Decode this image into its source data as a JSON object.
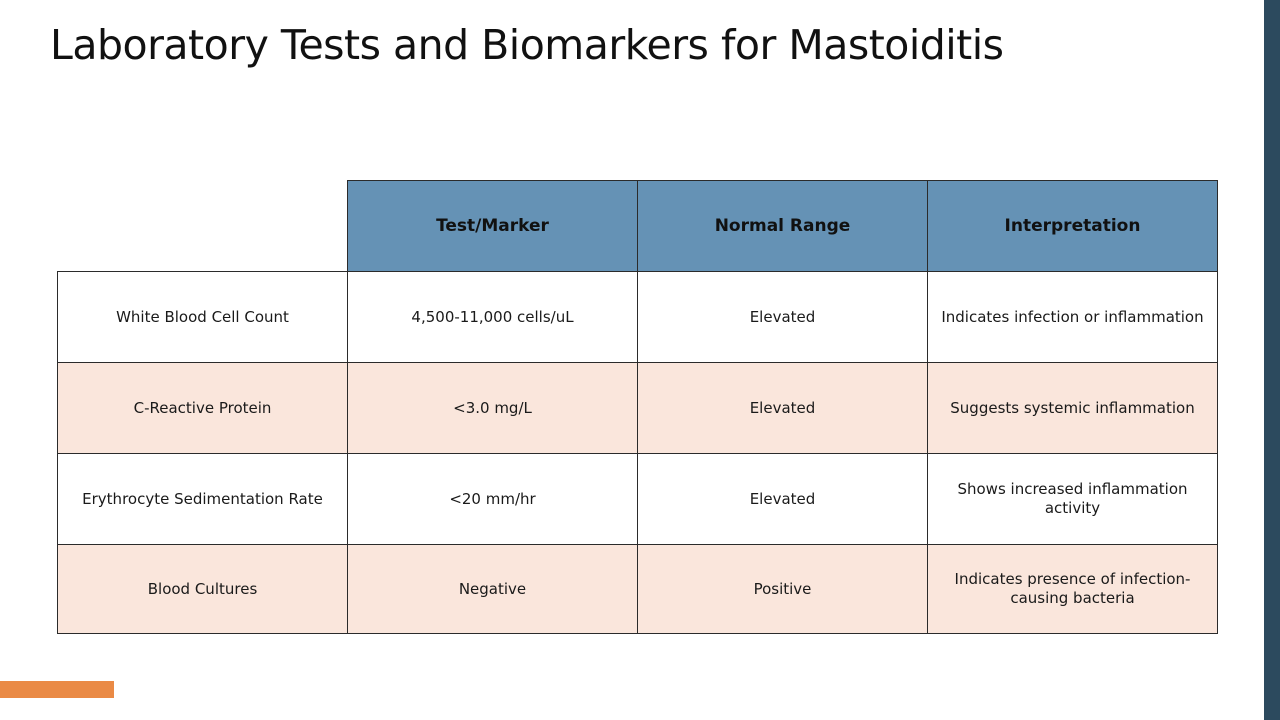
{
  "slide": {
    "title": "Laboratory Tests and Biomarkers for Mastoiditis"
  },
  "colors": {
    "header_bg": "#6592b5",
    "alt_row_bg": "#fae6dc",
    "right_bar": "#2c4a5e",
    "accent_bar": "#ea8a45"
  },
  "table": {
    "headers": [
      "",
      "Test/Marker",
      "Normal Range",
      "Interpretation"
    ],
    "rows": [
      [
        "White Blood Cell Count",
        "4,500-11,000 cells/uL",
        "Elevated",
        "Indicates infection or inflammation"
      ],
      [
        "C-Reactive Protein",
        "<3.0 mg/L",
        "Elevated",
        "Suggests systemic inflammation"
      ],
      [
        "Erythrocyte Sedimentation Rate",
        "<20 mm/hr",
        "Elevated",
        "Shows increased inflammation activity"
      ],
      [
        "Blood Cultures",
        "Negative",
        "Positive",
        "Indicates presence of infection-causing bacteria"
      ]
    ]
  }
}
